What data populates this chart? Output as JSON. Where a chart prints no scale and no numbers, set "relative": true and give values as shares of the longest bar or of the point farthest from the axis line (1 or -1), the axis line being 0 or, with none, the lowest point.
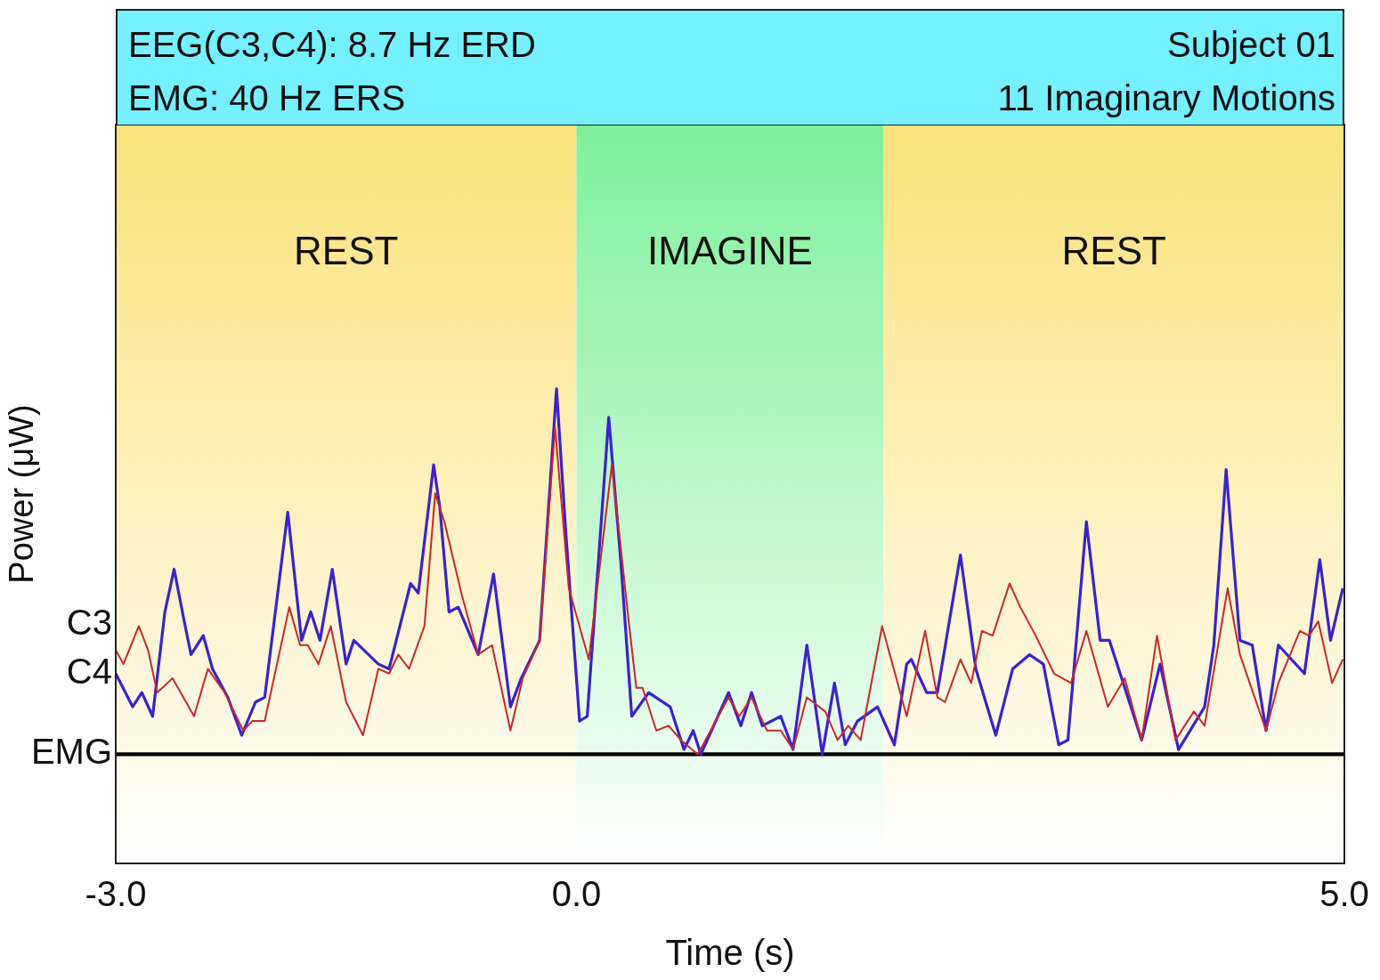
{
  "chart_data": {
    "type": "line",
    "xlabel": "Time (s)",
    "ylabel": "Power (μW)",
    "relative": true,
    "legend": false,
    "grid": false,
    "marker": "none",
    "annotations": [
      "EEG(C3,C4): 8.7 Hz ERD",
      "EMG: 40 Hz ERS",
      "Subject 01",
      "11 Imaginary Motions"
    ],
    "xlim": [
      -3,
      5
    ],
    "xticks": [
      {
        "value": -3,
        "label": "-3.0"
      },
      {
        "value": 0,
        "label": "0.0"
      },
      {
        "value": 5,
        "label": "5.0"
      }
    ],
    "bands": [
      {
        "axis": "x",
        "from": -3,
        "to": 0,
        "label": "REST",
        "color": "#fbe27a"
      },
      {
        "axis": "x",
        "from": 0,
        "to": 2,
        "label": "IMAGINE",
        "color": "#7ef09a"
      },
      {
        "axis": "x",
        "from": 2,
        "to": 5,
        "label": "REST",
        "color": "#fbe27a"
      }
    ],
    "series": [
      {
        "name": "C3",
        "color": "#c82828",
        "x": [
          -3.0,
          -2.95,
          -2.85,
          -2.79,
          -2.73,
          -2.63,
          -2.49,
          -2.4,
          -2.29,
          -2.17,
          -2.11,
          -2.03,
          -1.87,
          -1.8,
          -1.75,
          -1.68,
          -1.6,
          -1.5,
          -1.39,
          -1.29,
          -1.22,
          -1.16,
          -1.09,
          -0.99,
          -0.92,
          -0.86,
          -0.75,
          -0.64,
          -0.55,
          -0.43,
          -0.35,
          -0.24,
          -0.14,
          -0.05,
          0.08,
          0.23,
          0.34,
          0.39,
          0.43,
          0.52,
          0.6,
          0.68,
          0.79,
          0.99,
          1.06,
          1.14,
          1.24,
          1.33,
          1.41,
          1.5,
          1.62,
          1.7,
          1.77,
          1.85,
          1.99,
          2.15,
          2.27,
          2.35,
          2.4,
          2.5,
          2.57,
          2.64,
          2.71,
          2.82,
          2.89,
          2.99,
          3.11,
          3.22,
          3.32,
          3.46,
          3.57,
          3.68,
          3.78,
          3.9,
          4.02,
          4.09,
          4.24,
          4.32,
          4.49,
          4.57,
          4.71,
          4.77,
          4.83,
          4.92,
          4.99
        ],
        "values": [
          0.45,
          0.42,
          0.5,
          0.45,
          0.36,
          0.39,
          0.31,
          0.41,
          0.36,
          0.28,
          0.3,
          0.3,
          0.54,
          0.46,
          0.46,
          0.42,
          0.5,
          0.34,
          0.27,
          0.41,
          0.4,
          0.44,
          0.41,
          0.5,
          0.78,
          0.72,
          0.57,
          0.44,
          0.46,
          0.28,
          0.39,
          0.47,
          0.92,
          0.58,
          0.43,
          0.84,
          0.51,
          0.37,
          0.37,
          0.28,
          0.29,
          0.26,
          0.23,
          0.35,
          0.31,
          0.35,
          0.28,
          0.28,
          0.24,
          0.35,
          0.32,
          0.26,
          0.29,
          0.26,
          0.5,
          0.31,
          0.49,
          0.35,
          0.34,
          0.43,
          0.38,
          0.49,
          0.48,
          0.59,
          0.54,
          0.48,
          0.4,
          0.38,
          0.49,
          0.33,
          0.39,
          0.26,
          0.48,
          0.26,
          0.32,
          0.29,
          0.58,
          0.44,
          0.28,
          0.38,
          0.49,
          0.48,
          0.51,
          0.38,
          0.43
        ]
      },
      {
        "name": "C4",
        "color": "#3a22cc",
        "x": [
          -3.0,
          -2.89,
          -2.83,
          -2.76,
          -2.68,
          -2.62,
          -2.56,
          -2.51,
          -2.43,
          -2.37,
          -2.27,
          -2.18,
          -2.09,
          -2.03,
          -1.93,
          -1.88,
          -1.83,
          -1.79,
          -1.73,
          -1.67,
          -1.59,
          -1.5,
          -1.45,
          -1.29,
          -1.22,
          -1.08,
          -1.03,
          -0.93,
          -0.89,
          -0.83,
          -0.77,
          -0.64,
          -0.54,
          -0.43,
          -0.36,
          -0.24,
          -0.13,
          -0.07,
          0.02,
          0.07,
          0.21,
          0.29,
          0.36,
          0.47,
          0.61,
          0.7,
          0.76,
          0.81,
          0.99,
          1.07,
          1.14,
          1.21,
          1.33,
          1.41,
          1.5,
          1.6,
          1.68,
          1.75,
          1.83,
          1.96,
          2.07,
          2.15,
          2.18,
          2.28,
          2.35,
          2.5,
          2.6,
          2.73,
          2.84,
          2.95,
          3.04,
          3.14,
          3.2,
          3.32,
          3.41,
          3.47,
          3.68,
          3.8,
          3.92,
          4.09,
          4.15,
          4.23,
          4.32,
          4.4,
          4.49,
          4.57,
          4.74,
          4.84,
          4.91,
          4.99
        ],
        "values": [
          0.4,
          0.33,
          0.36,
          0.31,
          0.53,
          0.62,
          0.52,
          0.44,
          0.48,
          0.41,
          0.35,
          0.27,
          0.34,
          0.35,
          0.61,
          0.74,
          0.59,
          0.47,
          0.53,
          0.47,
          0.62,
          0.42,
          0.47,
          0.42,
          0.41,
          0.59,
          0.57,
          0.84,
          0.75,
          0.53,
          0.54,
          0.44,
          0.61,
          0.33,
          0.39,
          0.47,
          1.0,
          0.7,
          0.3,
          0.31,
          0.94,
          0.63,
          0.31,
          0.36,
          0.33,
          0.24,
          0.28,
          0.23,
          0.36,
          0.29,
          0.36,
          0.29,
          0.31,
          0.24,
          0.46,
          0.23,
          0.38,
          0.25,
          0.3,
          0.33,
          0.25,
          0.42,
          0.43,
          0.36,
          0.36,
          0.65,
          0.41,
          0.27,
          0.41,
          0.44,
          0.42,
          0.25,
          0.26,
          0.72,
          0.47,
          0.47,
          0.26,
          0.42,
          0.24,
          0.33,
          0.46,
          0.83,
          0.47,
          0.46,
          0.28,
          0.46,
          0.4,
          0.64,
          0.47,
          0.58
        ]
      },
      {
        "name": "EMG",
        "color": "#000000",
        "x": [
          -3,
          5
        ],
        "values": [
          0.23,
          0.23
        ]
      }
    ]
  }
}
